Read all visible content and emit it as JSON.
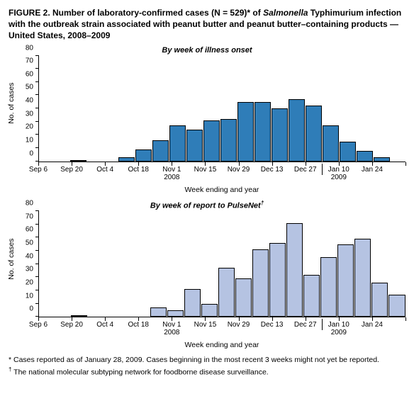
{
  "title_prefix": "FIGURE 2. Number of laboratory-confirmed cases (N = 529)* of ",
  "title_italic": "Salmonella",
  "title_suffix": " Typhimurium infection with the outbreak strain associated with peanut butter and peanut butter–containing products — United States, 2008–2009",
  "chart1": {
    "subtitle": "By week of illness onset",
    "type": "bar",
    "bar_color": "#2f7db8",
    "bar_border": "#000000",
    "background_color": "#ffffff",
    "ylabel": "No. of cases",
    "ylim": [
      0,
      80
    ],
    "ytick_step": 10,
    "values": [
      0,
      0,
      1,
      0,
      0,
      3,
      9,
      16,
      27,
      24,
      31,
      32,
      45,
      45,
      40,
      47,
      42,
      27,
      15,
      8,
      3,
      0
    ],
    "label_fontsize": 10.5
  },
  "chart2": {
    "subtitle": "By week of report to PulseNet",
    "subtitle_dagger": "†",
    "type": "bar",
    "bar_color": "#b5c3e2",
    "bar_border": "#000000",
    "background_color": "#ffffff",
    "ylabel": "No. of cases",
    "ylim": [
      0,
      80
    ],
    "ytick_step": 10,
    "values": [
      0,
      0,
      1,
      0,
      0,
      0,
      0,
      7,
      5,
      21,
      10,
      37,
      29,
      51,
      56,
      71,
      32,
      45,
      55,
      59,
      26,
      17
    ],
    "label_fontsize": 10.5
  },
  "xaxis": {
    "title": "Week ending and year",
    "n_bars": 22,
    "tick_positions": [
      0,
      2,
      4,
      6,
      8,
      10,
      12,
      14,
      16,
      18,
      20,
      22
    ],
    "labels": [
      {
        "pos": 0,
        "l1": "Sep 6"
      },
      {
        "pos": 2,
        "l1": "Sep 20"
      },
      {
        "pos": 4,
        "l1": "Oct 4"
      },
      {
        "pos": 6,
        "l1": "Oct 18"
      },
      {
        "pos": 8,
        "l1": "Nov 1",
        "l2": "2008"
      },
      {
        "pos": 10,
        "l1": "Nov 15"
      },
      {
        "pos": 12,
        "l1": "Nov 29"
      },
      {
        "pos": 14,
        "l1": "Dec 13"
      },
      {
        "pos": 16,
        "l1": "Dec 27"
      },
      {
        "pos": 18,
        "l1": "Jan 10",
        "l2": "2009"
      },
      {
        "pos": 20,
        "l1": "Jan 24"
      }
    ],
    "year_divider_pos": 17
  },
  "footnote1": "* Cases reported as of January 28, 2009. Cases beginning in the most recent 3 weeks might not yet be reported.",
  "footnote2_sym": "†",
  "footnote2_txt": " The national molecular subtyping network for foodborne disease surveillance."
}
